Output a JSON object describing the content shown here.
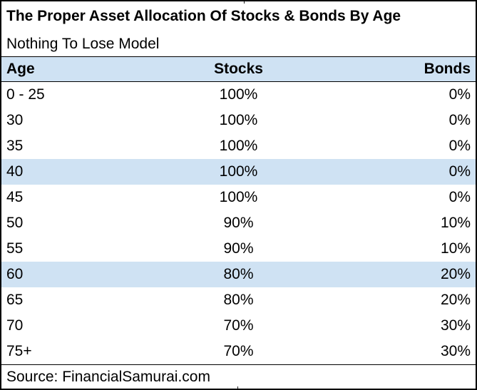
{
  "title": "The Proper Asset Allocation Of Stocks & Bonds By Age",
  "subtitle": "Nothing To Lose Model",
  "source": "Source: FinancialSamurai.com",
  "colors": {
    "highlight_blue": "#cfe2f3",
    "border_black": "#000000",
    "background": "#ffffff",
    "text": "#000000"
  },
  "chart_data": {
    "type": "table",
    "title": "The Proper Asset Allocation Of Stocks & Bonds By Age",
    "subtitle": "Nothing To Lose Model",
    "columns": [
      "Age",
      "Stocks",
      "Bonds"
    ],
    "rows": [
      {
        "age": "0 - 25",
        "stocks": "100%",
        "bonds": "0%",
        "highlighted": false
      },
      {
        "age": "30",
        "stocks": "100%",
        "bonds": "0%",
        "highlighted": false
      },
      {
        "age": "35",
        "stocks": "100%",
        "bonds": "0%",
        "highlighted": false
      },
      {
        "age": "40",
        "stocks": "100%",
        "bonds": "0%",
        "highlighted": true
      },
      {
        "age": "45",
        "stocks": "100%",
        "bonds": "0%",
        "highlighted": false
      },
      {
        "age": "50",
        "stocks": "90%",
        "bonds": "10%",
        "highlighted": false
      },
      {
        "age": "55",
        "stocks": "90%",
        "bonds": "10%",
        "highlighted": false
      },
      {
        "age": "60",
        "stocks": "80%",
        "bonds": "20%",
        "highlighted": true
      },
      {
        "age": "65",
        "stocks": "80%",
        "bonds": "20%",
        "highlighted": false
      },
      {
        "age": "70",
        "stocks": "70%",
        "bonds": "30%",
        "highlighted": false
      },
      {
        "age": "75+",
        "stocks": "70%",
        "bonds": "30%",
        "highlighted": false
      }
    ],
    "highlighted_ages": [
      "40",
      "60"
    ],
    "source": "Source: FinancialSamurai.com"
  }
}
